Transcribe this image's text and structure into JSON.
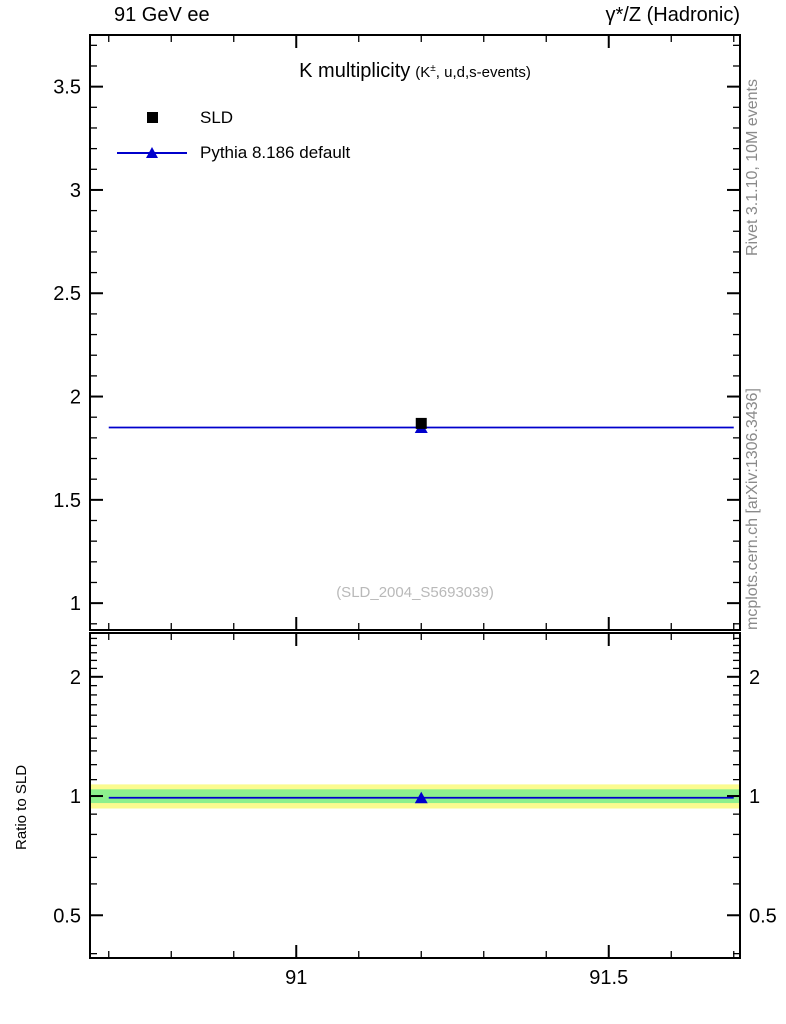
{
  "header": {
    "left": "91 GeV ee",
    "right": "γ*/Z (Hadronic)"
  },
  "title": {
    "main": "K multiplicity",
    "sub_prefix": "(K",
    "sub_sup": "±",
    "sub_suffix": ", u,d,s-events)"
  },
  "legend": [
    {
      "label": "SLD",
      "marker": "black-square"
    },
    {
      "label": "Pythia 8.186 default",
      "marker": "blue-line-triangle"
    }
  ],
  "watermark": "(SLD_2004_S5693039)",
  "side_labels": {
    "top_right": "Rivet 3.1.10,  10M events",
    "bottom_right": "mcplots.cern.ch [arXiv:1306.3436]",
    "ratio_ylabel": "Ratio to SLD"
  },
  "colors": {
    "mc": "#0000cc",
    "data": "#000000",
    "band_outer": "#fbfb8f",
    "band_inner": "#8df08d",
    "gray_text": "#8a8a8a",
    "watermark": "#b9b9b9"
  },
  "chart_data": [
    {
      "type": "scatter",
      "name": "main",
      "title": "K multiplicity (K±, u,d,s-events)",
      "xlim": [
        90.67,
        91.71
      ],
      "ylim": [
        0.87,
        3.75
      ],
      "x_ticks": {
        "major": [
          91,
          91.5
        ],
        "minor_step": 0.1,
        "labels": false
      },
      "y_ticks": {
        "major": [
          1,
          1.5,
          2,
          2.5,
          3,
          3.5
        ],
        "minor_step": 0.1,
        "labels": "left"
      },
      "series": [
        {
          "name": "Pythia 8.186 default",
          "color": "#0000cc",
          "marker": "triangle",
          "points": [
            {
              "x": 91.2,
              "y": 1.85,
              "xlo": 90.7,
              "xhi": 91.7
            }
          ]
        },
        {
          "name": "SLD",
          "color": "#000000",
          "marker": "square",
          "points": [
            {
              "x": 91.2,
              "y": 1.87
            }
          ]
        }
      ]
    },
    {
      "type": "ratio",
      "name": "ratio",
      "ylabel": "Ratio to SLD",
      "yscale": "log",
      "xlim": [
        90.67,
        91.71
      ],
      "ylim": [
        0.39,
        2.58
      ],
      "x_ticks": {
        "major": [
          91,
          91.5
        ],
        "minor_step": 0.1,
        "labels": true
      },
      "y_ticks": {
        "major": [
          0.5,
          1,
          2
        ],
        "labels": "both"
      },
      "bands": [
        {
          "y_from": 0.93,
          "y_to": 1.07,
          "color": "#fbfb8f"
        },
        {
          "y_from": 0.96,
          "y_to": 1.04,
          "color": "#8df08d"
        }
      ],
      "series": [
        {
          "name": "Pythia ratio",
          "color": "#0000cc",
          "marker": "triangle",
          "points": [
            {
              "x": 91.2,
              "y": 0.99,
              "xlo": 90.7,
              "xhi": 91.7
            }
          ]
        }
      ]
    }
  ]
}
